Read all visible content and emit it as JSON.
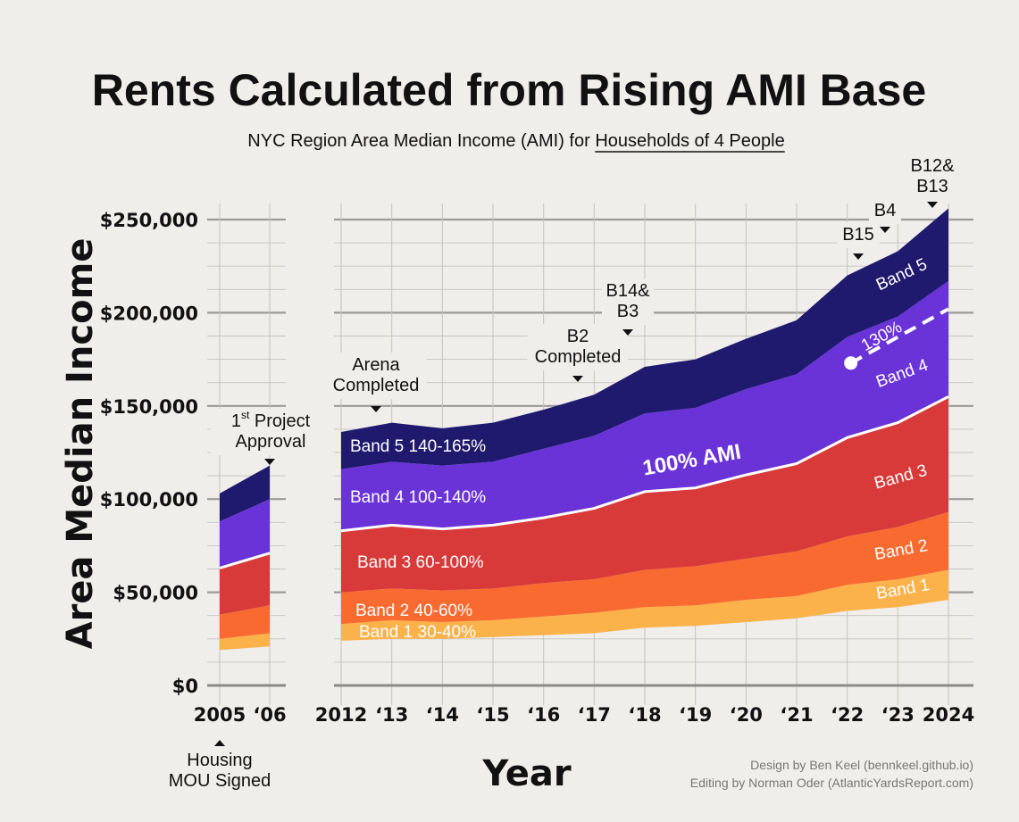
{
  "chart_data": {
    "type": "area",
    "title": "Rents Calculated from Rising AMI Base",
    "subtitle_prefix": "NYC Region Area Median Income (AMI) for ",
    "subtitle_underlined": "Households of 4 People",
    "ylabel": "Area Median Income",
    "xlabel": "Year",
    "ylim": [
      0,
      260000
    ],
    "y_ticks": [
      0,
      50000,
      100000,
      150000,
      200000,
      250000
    ],
    "y_tick_labels": [
      "$0",
      "$50,000",
      "$100,000",
      "$150,000",
      "$200,000",
      "$250,000"
    ],
    "x_tick_labels": [
      "2005",
      "‘06",
      "2012",
      "‘13",
      "‘14",
      "‘15",
      "‘16",
      "‘17",
      "‘18",
      "‘19",
      "‘20",
      "‘21",
      "‘22",
      "‘23",
      "2024"
    ],
    "segments": [
      {
        "x": [
          2005,
          2006
        ],
        "ami_100": [
          63000,
          71000
        ],
        "bands": [
          {
            "name": "Band 1",
            "lower": [
              19000,
              21000
            ],
            "upper": [
              25000,
              28000
            ]
          },
          {
            "name": "Band 2",
            "lower": [
              25000,
              28000
            ],
            "upper": [
              38000,
              43000
            ]
          },
          {
            "name": "Band 3",
            "lower": [
              38000,
              43000
            ],
            "upper": [
              63000,
              71000
            ]
          },
          {
            "name": "Band 4",
            "lower": [
              63000,
              71000
            ],
            "upper": [
              88000,
              100000
            ]
          },
          {
            "name": "Band 5",
            "lower": [
              88000,
              100000
            ],
            "upper": [
              103000,
              118000
            ]
          }
        ]
      },
      {
        "x": [
          2012,
          2013,
          2014,
          2015,
          2016,
          2017,
          2018,
          2019,
          2020,
          2021,
          2022,
          2023,
          2024
        ],
        "ami_100": [
          83000,
          86000,
          84000,
          86000,
          90000,
          95000,
          104000,
          106000,
          113000,
          119000,
          133000,
          141000,
          155000
        ],
        "bands": [
          {
            "name": "Band 1",
            "lower": [
              24000,
              25000,
              25000,
              26000,
              27000,
              28000,
              31000,
              32000,
              34000,
              36000,
              40000,
              42000,
              46000
            ],
            "upper": [
              33000,
              35000,
              34000,
              35000,
              37000,
              39000,
              42000,
              43000,
              46000,
              48000,
              54000,
              57000,
              62000
            ]
          },
          {
            "name": "Band 2",
            "lower": [
              33000,
              35000,
              34000,
              35000,
              37000,
              39000,
              42000,
              43000,
              46000,
              48000,
              54000,
              57000,
              62000
            ],
            "upper": [
              50000,
              52000,
              51000,
              52000,
              55000,
              57000,
              62000,
              64000,
              68000,
              72000,
              80000,
              85000,
              93000
            ]
          },
          {
            "name": "Band 3",
            "lower": [
              50000,
              52000,
              51000,
              52000,
              55000,
              57000,
              62000,
              64000,
              68000,
              72000,
              80000,
              85000,
              93000
            ],
            "upper": [
              83000,
              86000,
              84000,
              86000,
              90000,
              95000,
              104000,
              106000,
              113000,
              119000,
              133000,
              141000,
              155000
            ]
          },
          {
            "name": "Band 4",
            "lower": [
              83000,
              86000,
              84000,
              86000,
              90000,
              95000,
              104000,
              106000,
              113000,
              119000,
              133000,
              141000,
              155000
            ],
            "upper": [
              116000,
              120000,
              118000,
              120000,
              127000,
              134000,
              146000,
              149000,
              159000,
              167000,
              187000,
              198000,
              217000
            ]
          },
          {
            "name": "Band 5",
            "lower": [
              116000,
              120000,
              118000,
              120000,
              127000,
              134000,
              146000,
              149000,
              159000,
              167000,
              187000,
              198000,
              217000
            ],
            "upper": [
              136000,
              141000,
              138000,
              141000,
              148000,
              156000,
              171000,
              175000,
              186000,
              196000,
              220000,
              233000,
              256000
            ]
          }
        ]
      }
    ],
    "ami_130": {
      "label": "130%",
      "x": [
        2022,
        2024
      ],
      "y": [
        173000,
        202000
      ]
    },
    "ami_100_label": "100% AMI",
    "band_labels_left": [
      "Band 5  140-165%",
      "Band 4  100-140%",
      "Band 3  60-100%",
      "Band 2  40-60%",
      "Band 1  30-40%"
    ],
    "band_labels_right": [
      "Band 5",
      "Band 4",
      "Band 3",
      "Band 2",
      "Band 1"
    ],
    "annotations": [
      {
        "lines": [
          "Housing",
          "MOU Signed"
        ],
        "x": 2005
      },
      {
        "lines": [
          "1st Project",
          "Approval"
        ],
        "x": 2006
      },
      {
        "lines": [
          "Arena",
          "Completed"
        ],
        "x": 2012.7
      },
      {
        "lines": [
          "B2",
          "Completed"
        ],
        "x": 2016.7
      },
      {
        "lines": [
          "B14&",
          "B3"
        ],
        "x": 2017.7
      },
      {
        "lines": [
          "B15"
        ],
        "x": 2022.2
      },
      {
        "lines": [
          "B4"
        ],
        "x": 2022.7
      },
      {
        "lines": [
          "B12&",
          "B13"
        ],
        "x": 2023.7
      }
    ],
    "credits": [
      "Design by Ben Keel (bennkeel.github.io)",
      "Editing by Norman Oder (AtlanticYardsReport.com)"
    ],
    "colors": {
      "background": "#efeeea",
      "band1": "#fbb24b",
      "band2": "#f86a30",
      "band3": "#d83a3a",
      "band4": "#6a33d8",
      "band5": "#1f1a6e",
      "grid": "#9a9a9a"
    }
  }
}
